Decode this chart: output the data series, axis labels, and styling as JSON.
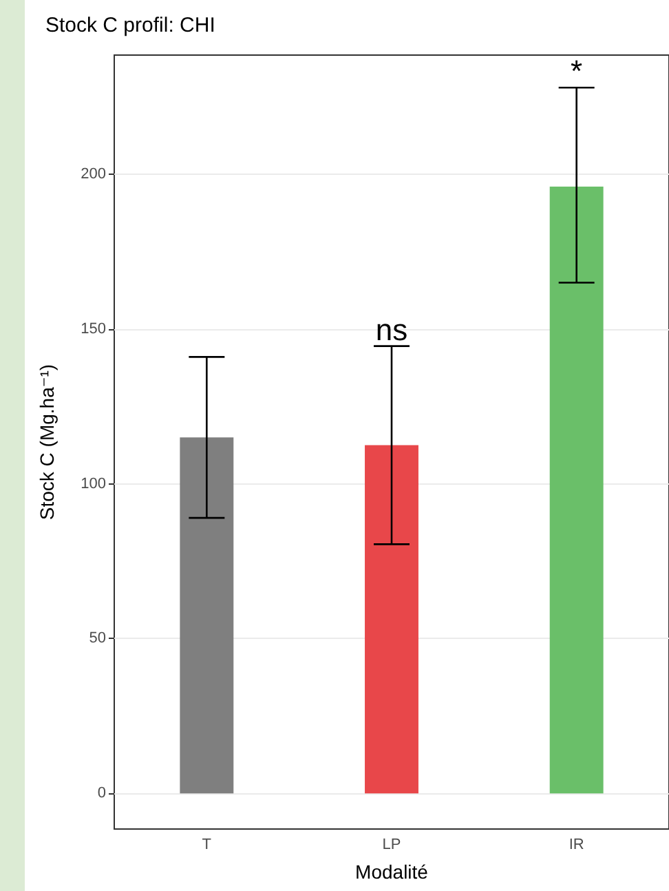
{
  "chart_data": {
    "type": "bar",
    "title": "Stock C profil: CHI",
    "xlabel": "Modalité",
    "ylabel": "Stock C (Mg.ha⁻¹)",
    "categories": [
      "T",
      "LP",
      "IR"
    ],
    "values": [
      115,
      112.5,
      196
    ],
    "colors": [
      "#7f7f7f",
      "#e8474a",
      "#6abf69"
    ],
    "errors": [
      [
        89,
        141
      ],
      [
        80.5,
        144.5
      ],
      [
        165,
        228
      ]
    ],
    "ylim": [
      -11.5,
      238.5
    ],
    "yticks": [
      0,
      50,
      100,
      150,
      200
    ],
    "grid": true,
    "annotations": [
      {
        "text": "ns",
        "x": "LP",
        "y": 144.5
      },
      {
        "text": "*",
        "x": "IR",
        "y": 228
      }
    ]
  }
}
